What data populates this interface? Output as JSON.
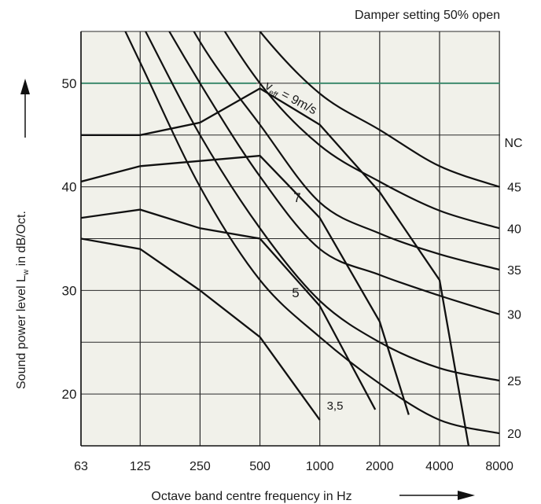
{
  "chart_data": {
    "type": "line",
    "title": "Damper setting 50% open",
    "xlabel": "Octave band centre frequency in Hz",
    "ylabel_prefix": "Sound power level L",
    "ylabel_sub": "w",
    "ylabel_suffix": " in dB/Oct.",
    "x_scale": "log2-octave",
    "x_ticks": [
      "63",
      "125",
      "250",
      "500",
      "1000",
      "2000",
      "4000",
      "8000"
    ],
    "x_values": [
      63,
      125,
      250,
      500,
      1000,
      2000,
      4000,
      8000
    ],
    "y_ticks_left": [
      "20",
      "30",
      "40",
      "50"
    ],
    "ylim": [
      15,
      55
    ],
    "nc_label": "NC",
    "nc_curves": [
      {
        "label": "45",
        "values": [
          85,
          73,
          63,
          55,
          49,
          45.5,
          42,
          40
        ]
      },
      {
        "label": "40",
        "values": [
          80,
          70,
          59,
          50,
          44,
          40.5,
          37.7,
          36
        ]
      },
      {
        "label": "35",
        "values": [
          76,
          65,
          54,
          46,
          38.5,
          35.5,
          33.5,
          32
        ]
      },
      {
        "label": "30",
        "values": [
          71,
          60,
          50,
          41,
          34,
          31.5,
          29.5,
          27.7
        ]
      },
      {
        "label": "25",
        "values": [
          67,
          56,
          45,
          36,
          29,
          25,
          22.5,
          21.3
        ]
      },
      {
        "label": "20",
        "values": [
          64,
          52,
          40,
          31,
          25.5,
          21,
          17.5,
          16.2
        ]
      }
    ],
    "series": [
      {
        "name": "9m/s",
        "x": [
          63,
          125,
          250,
          500,
          1000,
          2000,
          4000,
          5600
        ],
        "values": [
          45,
          45,
          46.2,
          49.5,
          46,
          39.5,
          31,
          15
        ]
      },
      {
        "name": "7",
        "x": [
          63,
          125,
          250,
          500,
          1000,
          2000,
          2800
        ],
        "values": [
          40.5,
          42,
          42.5,
          43,
          37,
          27,
          18
        ]
      },
      {
        "name": "5",
        "x": [
          63,
          125,
          250,
          500,
          1000,
          1900
        ],
        "values": [
          37,
          37.8,
          36,
          35,
          28.5,
          18.5
        ]
      },
      {
        "name": "3,5",
        "x": [
          63,
          125,
          250,
          500,
          1000
        ],
        "values": [
          35,
          34,
          30,
          25.5,
          17.5
        ]
      }
    ],
    "series_labels": [
      {
        "text": "v",
        "sub": "eff",
        "rest": " = 9m/s"
      },
      {
        "text": "7"
      },
      {
        "text": "5"
      },
      {
        "text": "3,5"
      }
    ],
    "horizontal_highlight": {
      "y": 50,
      "color": "#3f8a6e"
    },
    "grid": true
  }
}
